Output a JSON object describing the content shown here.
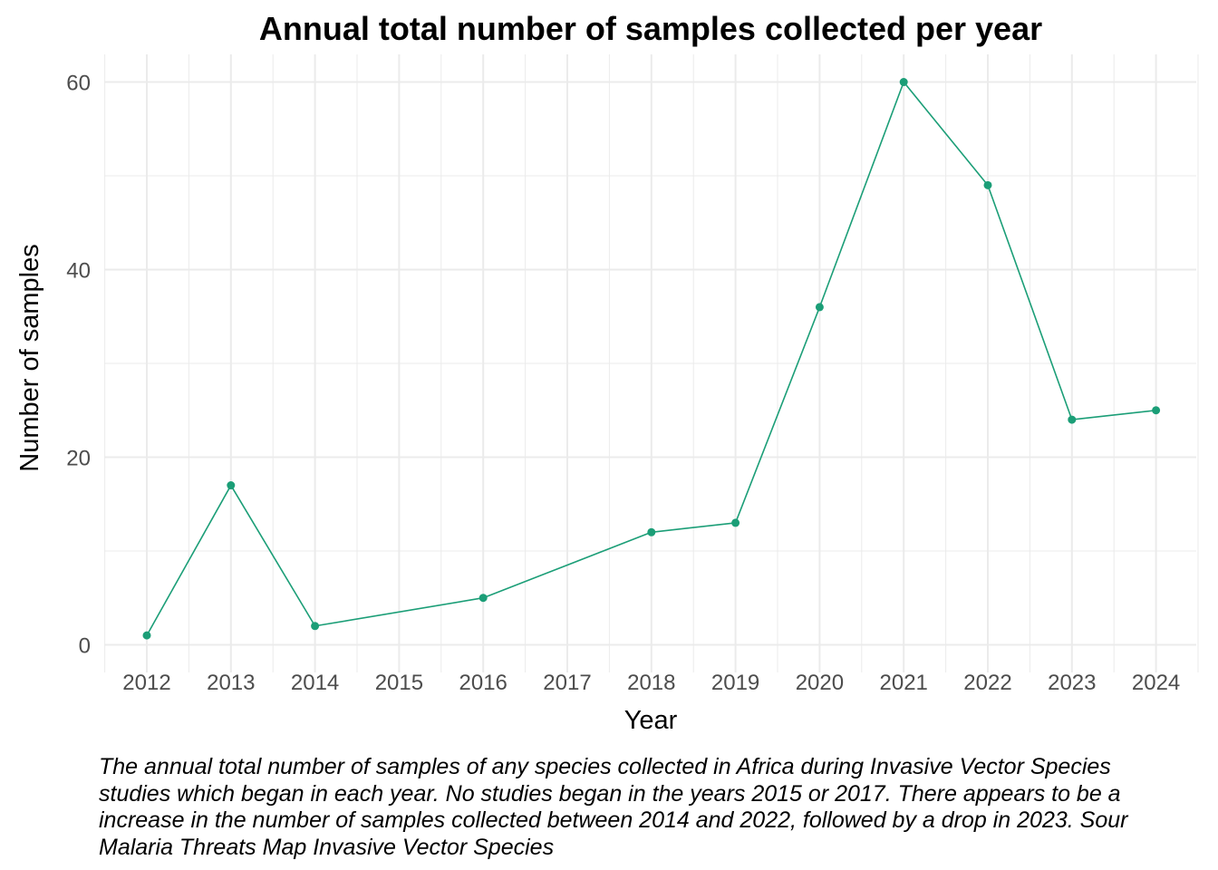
{
  "chart_data": {
    "type": "line",
    "title": "Annual total number of samples collected per year",
    "xlabel": "Year",
    "ylabel": "Number of samples",
    "categories": [
      "2012",
      "2013",
      "2014",
      "2015",
      "2016",
      "2017",
      "2018",
      "2019",
      "2020",
      "2021",
      "2022",
      "2023",
      "2024"
    ],
    "series": [
      {
        "x": [
          "2012",
          "2013",
          "2014",
          "2016",
          "2018",
          "2019",
          "2020",
          "2021",
          "2022",
          "2023",
          "2024"
        ],
        "values": [
          1,
          17,
          2,
          5,
          12,
          13,
          36,
          60,
          49,
          24,
          25
        ]
      }
    ],
    "y_ticks": [
      "0",
      "20",
      "40",
      "60"
    ],
    "ylim": [
      -2.95,
      62.95
    ],
    "grid": true,
    "legend": "none",
    "line_color": "#1b9e77",
    "grid_color": "#ebebeb",
    "caption": "The annual total number of samples of any species collected in Africa during Invasive Vector Species\nstudies which began in each year. No studies began in the years 2015 or 2017. There appears to be a\nincrease in the number of samples collected between 2014 and 2022, followed by a drop in 2023. Sour\nMalaria Threats Map Invasive Vector Species"
  }
}
